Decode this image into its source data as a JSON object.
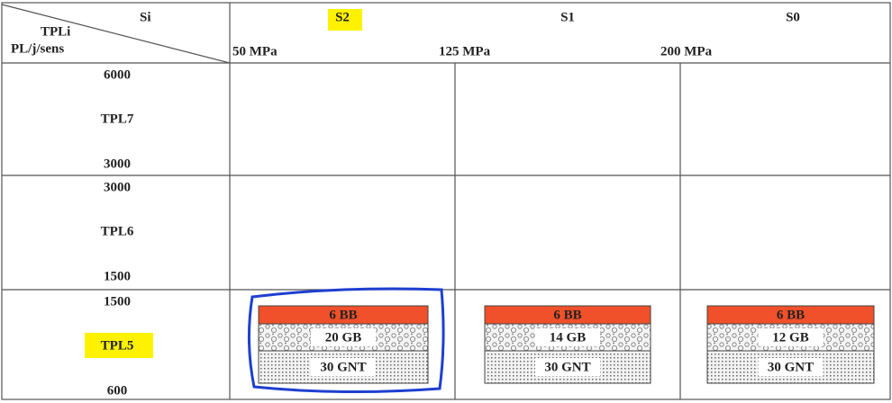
{
  "header": {
    "corner": {
      "top": "Si",
      "left": "TPLi",
      "bottom": "PL/j/sens"
    },
    "columns": [
      "S2",
      "S1",
      "S0"
    ],
    "pressures": [
      "50 MPa",
      "125 MPa",
      "200 MPa"
    ]
  },
  "rows": [
    {
      "upper": "6000",
      "class": "TPL7",
      "lower": "3000"
    },
    {
      "upper": "3000",
      "class": "TPL6",
      "lower": "1500"
    },
    {
      "upper": "1500",
      "class": "TPL5",
      "lower": "600"
    }
  ],
  "structures": [
    [
      "6 BB",
      "20 GB",
      "30 GNT"
    ],
    [
      "6 BB",
      "14 GB",
      "30 GNT"
    ],
    [
      "6 BB",
      "12 GB",
      "30 GNT"
    ]
  ]
}
